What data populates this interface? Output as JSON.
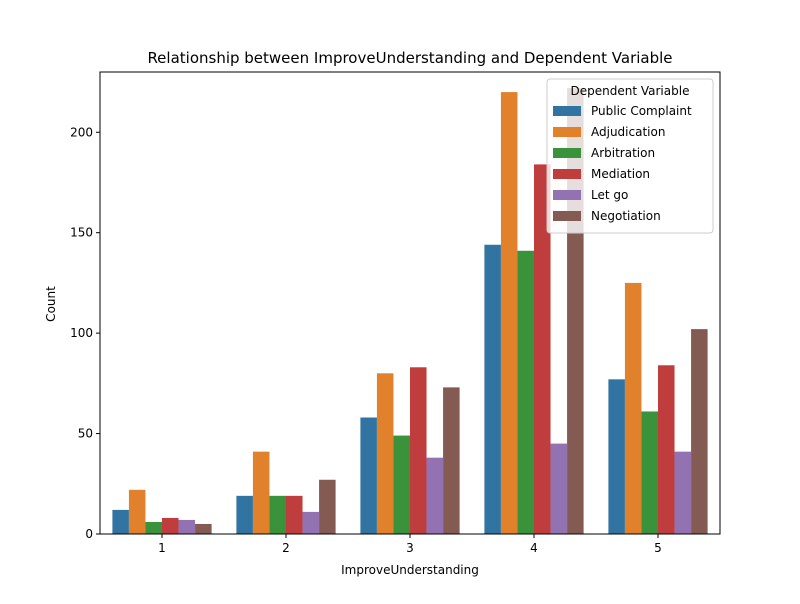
{
  "chart_data": {
    "type": "bar",
    "title": "Relationship between ImproveUnderstanding and Dependent Variable",
    "xlabel": "ImproveUnderstanding",
    "ylabel": "Count",
    "categories": [
      "1",
      "2",
      "3",
      "4",
      "5"
    ],
    "ylim": [
      0,
      230
    ],
    "yticks": [
      0,
      50,
      100,
      150,
      200
    ],
    "grid": false,
    "legend": {
      "title": "Dependent Variable",
      "placement": "top-right"
    },
    "series": [
      {
        "name": "Public Complaint",
        "color": "#3274a1",
        "values": [
          12,
          19,
          58,
          144,
          77
        ]
      },
      {
        "name": "Adjudication",
        "color": "#e1812c",
        "values": [
          22,
          41,
          80,
          220,
          125
        ]
      },
      {
        "name": "Arbitration",
        "color": "#3a923a",
        "values": [
          6,
          19,
          49,
          141,
          61
        ]
      },
      {
        "name": "Mediation",
        "color": "#c03d3e",
        "values": [
          8,
          19,
          83,
          184,
          84
        ]
      },
      {
        "name": "Let go",
        "color": "#9372b2",
        "values": [
          7,
          11,
          38,
          45,
          41
        ]
      },
      {
        "name": "Negotiation",
        "color": "#845b53",
        "values": [
          5,
          27,
          73,
          222,
          102
        ]
      }
    ]
  }
}
